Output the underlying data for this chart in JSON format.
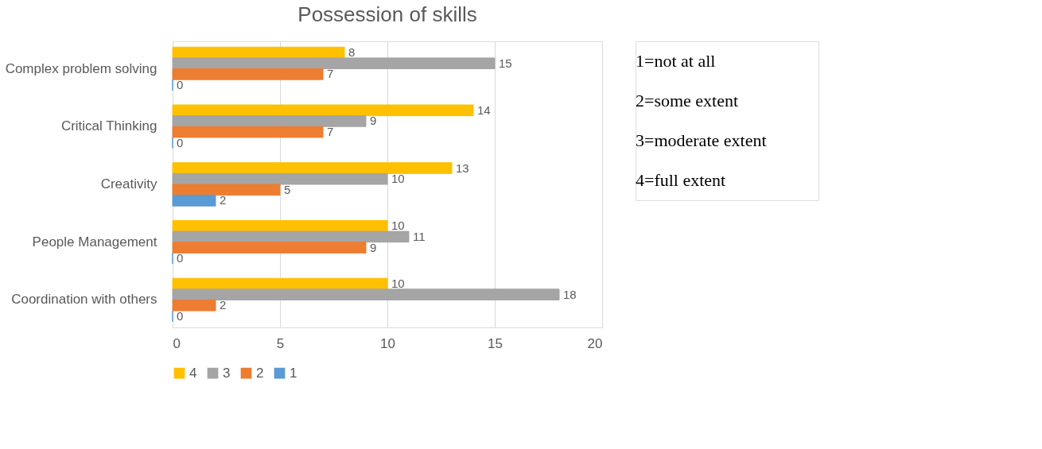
{
  "chart_data": {
    "type": "bar",
    "orientation": "horizontal",
    "title": "Possession of skills",
    "categories": [
      "Complex problem solving",
      "Critical Thinking",
      "Creativity",
      "People Management",
      "Coordination with others"
    ],
    "series": [
      {
        "name": "4",
        "color": "#ffc000",
        "values": [
          8,
          14,
          13,
          10,
          10
        ]
      },
      {
        "name": "3",
        "color": "#a5a5a5",
        "values": [
          15,
          9,
          10,
          11,
          18
        ]
      },
      {
        "name": "2",
        "color": "#ed7d31",
        "values": [
          7,
          7,
          5,
          9,
          2
        ]
      },
      {
        "name": "1",
        "color": "#5b9bd5",
        "values": [
          0,
          0,
          2,
          0,
          0
        ]
      }
    ],
    "xlim": [
      0,
      20
    ],
    "xticks": [
      0,
      5,
      10,
      15,
      20
    ],
    "grid": "x",
    "legend": "bottom",
    "data_labels": true,
    "annotations": [
      "1=not at all",
      "2=some extent",
      "3=moderate extent",
      "4=full extent"
    ]
  }
}
